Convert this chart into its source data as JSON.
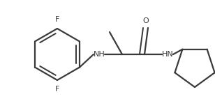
{
  "line_color": "#3a3a3a",
  "bg_color": "#ffffff",
  "line_width": 1.6,
  "text_color": "#3a3a3a",
  "font_size": 8.0,
  "F_top_label": "F",
  "F_bottom_label": "F",
  "NH_left_label": "NH",
  "HN_right_label": "HN",
  "O_label": "O"
}
